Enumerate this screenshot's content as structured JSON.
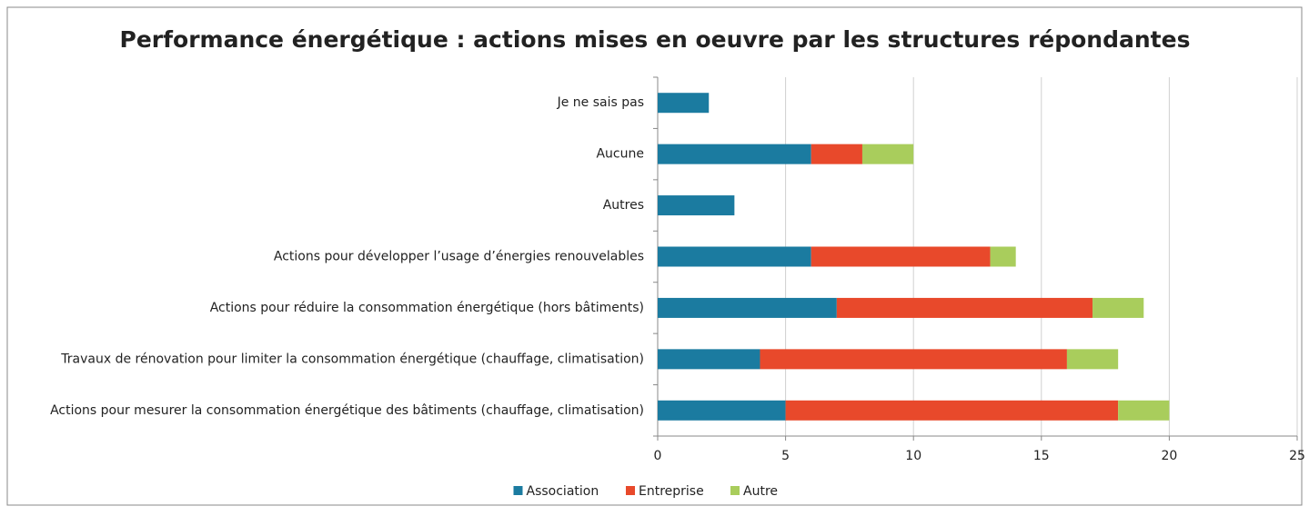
{
  "chart_data": {
    "type": "stacked-barh",
    "title": "Performance énergétique : actions mises en oeuvre par les structures répondantes",
    "categories": [
      "Je ne sais pas",
      "Aucune",
      "Autres",
      "Actions pour développer l’usage d’énergies renouvelables",
      "Actions pour réduire la consommation énergétique (hors bâtiments)",
      "Travaux de rénovation pour limiter la consommation énergétique (chauffage, climatisation)",
      "Actions pour mesurer la consommation énergétique des bâtiments (chauffage, climatisation)"
    ],
    "series": [
      {
        "name": "Association",
        "color": "#1b7ba0",
        "values": [
          2,
          6,
          3,
          6,
          7,
          4,
          5
        ]
      },
      {
        "name": "Entreprise",
        "color": "#e8492b",
        "values": [
          0,
          2,
          0,
          7,
          10,
          12,
          13
        ]
      },
      {
        "name": "Autre",
        "color": "#a9cd5c",
        "values": [
          0,
          2,
          0,
          1,
          2,
          2,
          2
        ]
      }
    ],
    "xlim": [
      0,
      25
    ],
    "xticks": [
      0,
      5,
      10,
      15,
      20,
      25
    ],
    "grid": true,
    "legend": "bottom"
  }
}
